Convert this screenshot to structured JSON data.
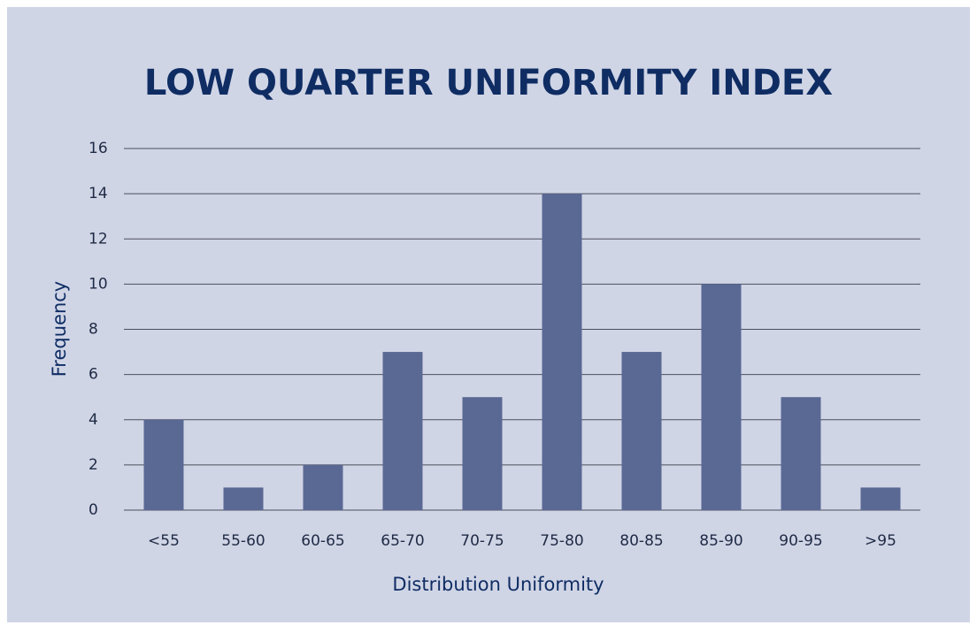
{
  "chart_data": {
    "type": "bar",
    "title": "LOW QUARTER UNIFORMITY INDEX",
    "x_label": "Distribution Uniformity",
    "y_label": "Frequency",
    "categories": [
      "<55",
      "55-60",
      "60-65",
      "65-70",
      "70-75",
      "75-80",
      "80-85",
      "85-90",
      "90-95",
      ">95"
    ],
    "values": [
      4,
      1,
      2,
      7,
      5,
      14,
      7,
      10,
      5,
      1
    ],
    "color": "#5a6894",
    "ylim": [
      0,
      16
    ],
    "yticks": [
      0,
      2,
      4,
      6,
      8,
      10,
      12,
      14,
      16
    ],
    "grid": true
  }
}
